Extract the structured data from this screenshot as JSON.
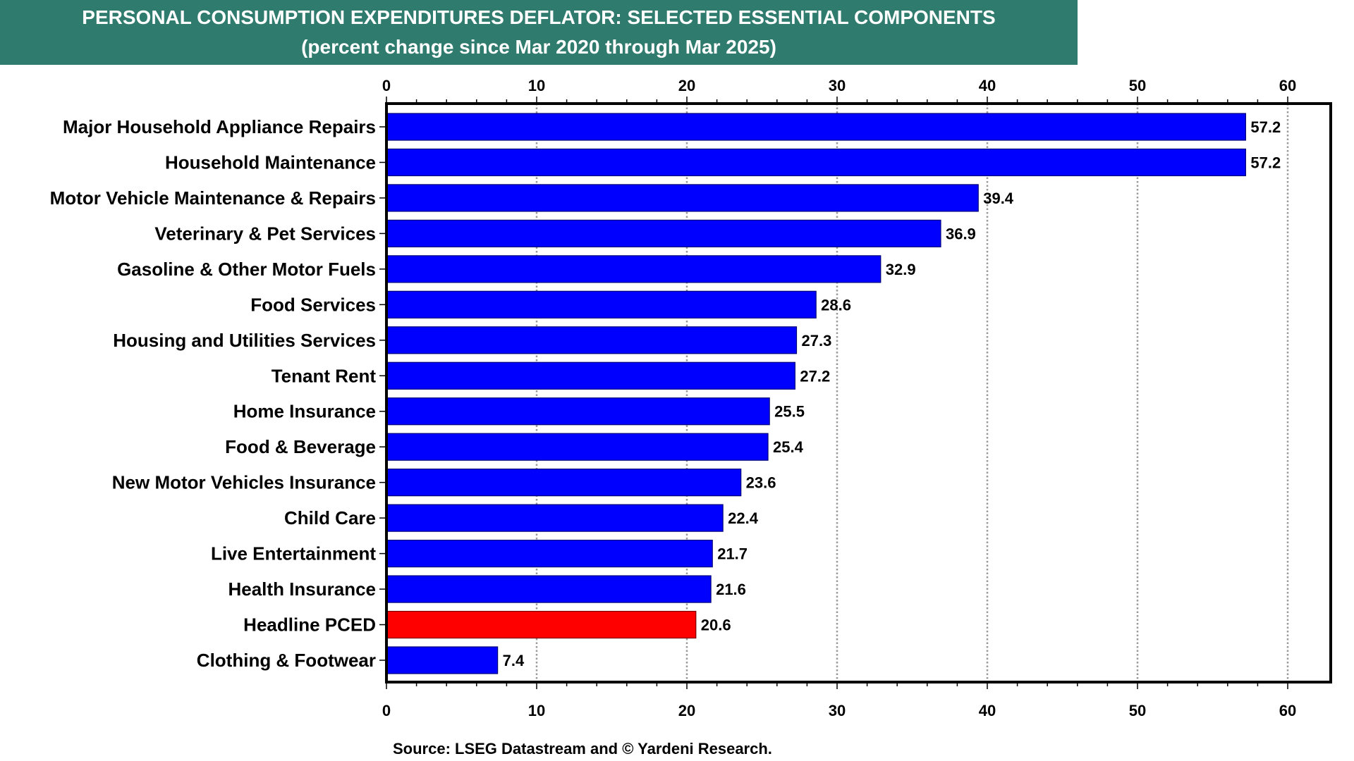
{
  "chart_data": {
    "type": "bar",
    "orientation": "horizontal",
    "title": "PERSONAL CONSUMPTION EXPENDITURES DEFLATOR: SELECTED ESSENTIAL COMPONENTS",
    "subtitle": "(percent change since Mar 2020 through Mar 2025)",
    "xlabel": "",
    "ylabel": "",
    "xlim": [
      0,
      60
    ],
    "xticks": [
      0,
      10,
      20,
      30,
      40,
      50,
      60
    ],
    "grid": "vertical dotted",
    "categories": [
      "Major Household Appliance Repairs",
      "Household Maintenance",
      "Motor Vehicle Maintenance & Repairs",
      "Veterinary & Pet Services",
      "Gasoline & Other Motor Fuels",
      "Food Services",
      "Housing and Utilities Services",
      "Tenant Rent",
      "Home Insurance",
      "Food & Beverage",
      "New Motor Vehicles Insurance",
      "Child Care",
      "Live Entertainment",
      "Health Insurance",
      "Headline PCED",
      "Clothing & Footwear"
    ],
    "values": [
      57.2,
      57.2,
      39.4,
      36.9,
      32.9,
      28.6,
      27.3,
      27.2,
      25.5,
      25.4,
      23.6,
      22.4,
      21.7,
      21.6,
      20.6,
      7.4
    ],
    "value_labels": [
      "57.2",
      "57.2",
      "39.4",
      "36.9",
      "32.9",
      "28.6",
      "27.3",
      "27.2",
      "25.5",
      "25.4",
      "23.6",
      "22.4",
      "21.7",
      "21.6",
      "20.6",
      "7.4"
    ],
    "highlight": "Headline PCED",
    "colors": {
      "default": "#0000ff",
      "highlight": "#ff0000",
      "header": "#2f7b6e"
    },
    "source": "Source: LSEG Datastream and © Yardeni Research."
  }
}
